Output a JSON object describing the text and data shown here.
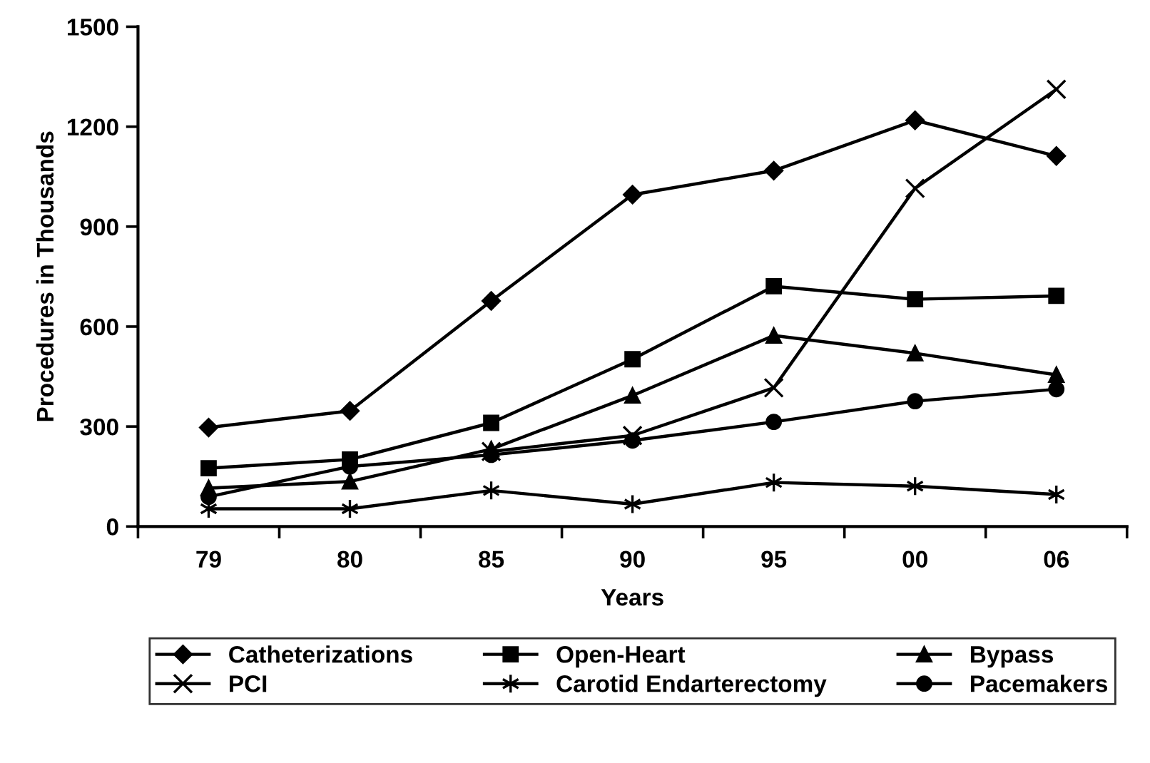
{
  "chart_data": {
    "type": "line",
    "xlabel": "Years",
    "ylabel": "Procedures in Thousands",
    "categories": [
      "79",
      "80",
      "85",
      "90",
      "95",
      "00",
      "06"
    ],
    "ylim": [
      0,
      1500
    ],
    "yticks": [
      0,
      300,
      600,
      900,
      1200,
      1500
    ],
    "grid": false,
    "legend": "bottom",
    "series": [
      {
        "name": "Catheterizations",
        "color": "#000000",
        "marker": "diamond",
        "values": [
          297,
          347,
          677,
          996,
          1068,
          1219,
          1112
        ]
      },
      {
        "name": "Open-Heart",
        "color": "#000000",
        "marker": "square",
        "values": [
          175,
          201,
          311,
          502,
          721,
          682,
          692
        ]
      },
      {
        "name": "Bypass",
        "color": "#000000",
        "marker": "triangle",
        "values": [
          115,
          135,
          232,
          393,
          573,
          520,
          455
        ]
      },
      {
        "name": "PCI",
        "color": "#000000",
        "marker": "cross",
        "values": [
          null,
          null,
          225,
          273,
          416,
          1015,
          1312
        ]
      },
      {
        "name": "Carotid Endarterectomy",
        "color": "#000000",
        "marker": "cross",
        "values": [
          53,
          53,
          108,
          67,
          132,
          121,
          96
        ]
      },
      {
        "name": "Pacemakers",
        "color": "#000000",
        "marker": "circle",
        "values": [
          89,
          180,
          215,
          258,
          314,
          376,
          412
        ]
      }
    ]
  }
}
